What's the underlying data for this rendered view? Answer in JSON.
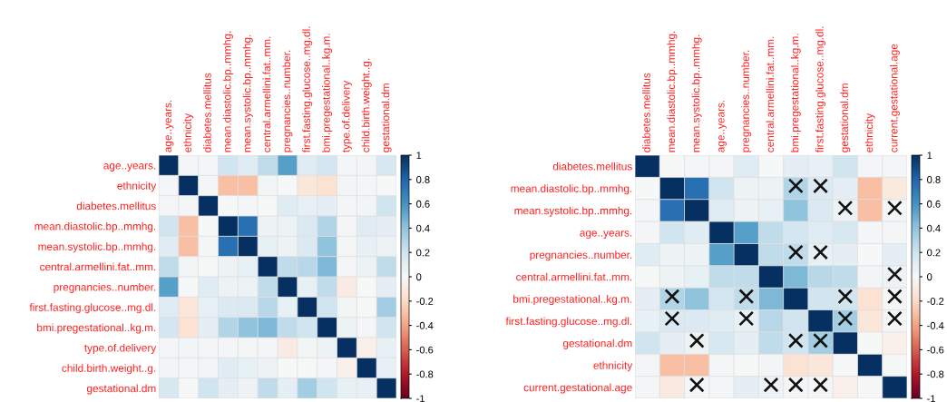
{
  "chart_data": [
    {
      "type": "heatmap",
      "grid": true,
      "clim": [
        -1,
        1
      ],
      "cticks": [
        -1,
        -0.8,
        -0.6,
        -0.4,
        -0.2,
        0,
        0.2,
        0.4,
        0.6,
        0.8,
        1
      ],
      "categories": [
        "age..years.",
        "ethnicity",
        "diabetes.mellitus",
        "mean.diastolic.bp..mmhg.",
        "mean.systolic.bp..mmhg.",
        "central.armellini.fat..mm.",
        "pregnancies..number.",
        "first.fasting.glucose..mg.dl.",
        "bmi.pregestational..kg.m.",
        "type.of.delivery",
        "child.birth.weight..g.",
        "gestational.dm"
      ],
      "y_categories": [
        "age..years.",
        "ethnicity",
        "diabetes.mellitus",
        "mean.diastolic.bp..mmhg.",
        "mean.systolic.bp..mmhg.",
        "central.armellini.fat..mm.",
        "pregnancies..number.",
        "first.fasting.glucose..mg.dl.",
        "bmi.pregestational..kg.m.",
        "type.of.delivery",
        "child.birth.weight..g.",
        "gestational.dm"
      ],
      "cells": [
        [
          1,
          0.02,
          0.02,
          0.2,
          0.12,
          0.25,
          0.55,
          0.12,
          0.18,
          0.02,
          0.03,
          0.17
        ],
        [
          0.02,
          1,
          0.02,
          -0.3,
          -0.3,
          0.03,
          0,
          -0.12,
          -0.15,
          0.03,
          0.02,
          0
        ],
        [
          0.02,
          0.02,
          1,
          0,
          0.02,
          0,
          0.12,
          0.08,
          0.1,
          0.02,
          0.03,
          0.2
        ],
        [
          0.2,
          -0.3,
          0,
          1,
          0.75,
          0.05,
          0.05,
          0.15,
          0.3,
          0.02,
          0.12,
          0.1
        ],
        [
          0.12,
          -0.3,
          0.02,
          0.75,
          1,
          0.08,
          0.05,
          0.15,
          0.4,
          0.02,
          0.08,
          0.05
        ],
        [
          0.25,
          0.03,
          0,
          0.05,
          0.08,
          1,
          0.25,
          0.28,
          0.45,
          0.02,
          0.05,
          0.25
        ],
        [
          0.55,
          0,
          0.12,
          0.05,
          0.05,
          0.25,
          1,
          0.08,
          0.25,
          -0.08,
          0,
          0.1
        ],
        [
          0.12,
          -0.12,
          0.08,
          0.15,
          0.15,
          0.28,
          0.08,
          1,
          0.2,
          0.03,
          0,
          0.35
        ],
        [
          0.18,
          -0.15,
          0.1,
          0.3,
          0.4,
          0.45,
          0.25,
          0.2,
          1,
          0.05,
          0.02,
          0.2
        ],
        [
          0.02,
          0.03,
          0.02,
          0.02,
          0.02,
          0.02,
          -0.08,
          0.03,
          0.05,
          1,
          -0.05,
          0.08
        ],
        [
          0.03,
          0.02,
          0.03,
          0.12,
          0.08,
          0.05,
          0,
          0,
          0.02,
          -0.05,
          1,
          0.08
        ],
        [
          0.17,
          0,
          0.2,
          0.1,
          0.05,
          0.25,
          0.1,
          0.35,
          0.2,
          0.08,
          0.08,
          1
        ]
      ]
    },
    {
      "type": "heatmap",
      "grid": true,
      "clim": [
        -1,
        1
      ],
      "cticks": [
        -1,
        -0.8,
        -0.6,
        -0.4,
        -0.2,
        0,
        0.2,
        0.4,
        0.6,
        0.8,
        1
      ],
      "categories": [
        "diabetes.mellitus",
        "mean.diastolic.bp..mmhg.",
        "mean.systolic.bp..mmhg.",
        "age..years.",
        "pregnancies..number.",
        "central.armellini.fat..mm.",
        "bmi.pregestational..kg.m.",
        "first.fasting.glucose..mg.dl.",
        "gestational.dm",
        "ethnicity",
        "current.gestational.age"
      ],
      "y_categories": [
        "diabetes.mellitus",
        "mean.diastolic.bp..mmhg.",
        "mean.systolic.bp..mmhg.",
        "age..years.",
        "pregnancies..number.",
        "central.armellini.fat..mm.",
        "bmi.pregestational..kg.m.",
        "first.fasting.glucose..mg.dl.",
        "gestational.dm",
        "ethnicity",
        "current.gestational.age"
      ],
      "cells": [
        [
          1,
          0,
          0.02,
          0.02,
          0.12,
          0,
          0.1,
          0.08,
          0.2,
          0.02,
          0.02
        ],
        [
          0,
          1,
          0.75,
          0.2,
          0.05,
          0.05,
          0.3,
          0.15,
          0.1,
          -0.3,
          -0.1
        ],
        [
          0.02,
          0.75,
          1,
          0.12,
          0.05,
          0.08,
          0.4,
          0.15,
          0.05,
          -0.3,
          0.02
        ],
        [
          0.02,
          0.2,
          0.12,
          1,
          0.55,
          0.25,
          0.18,
          0.12,
          0.17,
          0.02,
          0.02
        ],
        [
          0.12,
          0.05,
          0.05,
          0.55,
          1,
          0.25,
          0.25,
          0.08,
          0.1,
          0,
          0.1
        ],
        [
          0,
          0.05,
          0.08,
          0.25,
          0.25,
          1,
          0.45,
          0.28,
          0.25,
          0.03,
          0.05
        ],
        [
          0.1,
          0.3,
          0.4,
          0.18,
          0.25,
          0.45,
          1,
          0.2,
          0.2,
          -0.15,
          0.02
        ],
        [
          0.08,
          0.15,
          0.15,
          0.12,
          0.08,
          0.28,
          0.2,
          1,
          0.35,
          -0.12,
          0.02
        ],
        [
          0.2,
          0.1,
          0.05,
          0.17,
          0.1,
          0.25,
          0.2,
          0.35,
          1,
          0,
          -0.05
        ],
        [
          0.02,
          -0.3,
          -0.3,
          0.02,
          0,
          0.03,
          -0.15,
          -0.12,
          0,
          1,
          0
        ],
        [
          0.02,
          -0.1,
          0.02,
          0.02,
          0.1,
          0.05,
          0.02,
          0.02,
          -0.05,
          0,
          1
        ]
      ],
      "cell_labels": [
        [
          null,
          null,
          null,
          null,
          null,
          null,
          null,
          null,
          null,
          null,
          null
        ],
        [
          null,
          null,
          null,
          null,
          null,
          null,
          "×",
          "×",
          null,
          null,
          null
        ],
        [
          null,
          null,
          null,
          null,
          null,
          null,
          null,
          null,
          "×",
          null,
          "×"
        ],
        [
          null,
          null,
          null,
          null,
          null,
          null,
          null,
          null,
          null,
          null,
          null
        ],
        [
          null,
          null,
          null,
          null,
          null,
          null,
          "×",
          "×",
          null,
          null,
          null
        ],
        [
          null,
          null,
          null,
          null,
          null,
          null,
          null,
          null,
          null,
          null,
          "×"
        ],
        [
          null,
          "×",
          null,
          null,
          "×",
          null,
          null,
          null,
          "×",
          null,
          "×"
        ],
        [
          null,
          "×",
          null,
          null,
          "×",
          null,
          null,
          null,
          "×",
          null,
          "×"
        ],
        [
          null,
          null,
          "×",
          null,
          null,
          null,
          "×",
          "×",
          null,
          null,
          null
        ],
        [
          null,
          null,
          null,
          null,
          null,
          null,
          null,
          null,
          null,
          null,
          null
        ],
        [
          null,
          null,
          "×",
          null,
          null,
          "×",
          "×",
          "×",
          null,
          null,
          null
        ]
      ]
    }
  ]
}
